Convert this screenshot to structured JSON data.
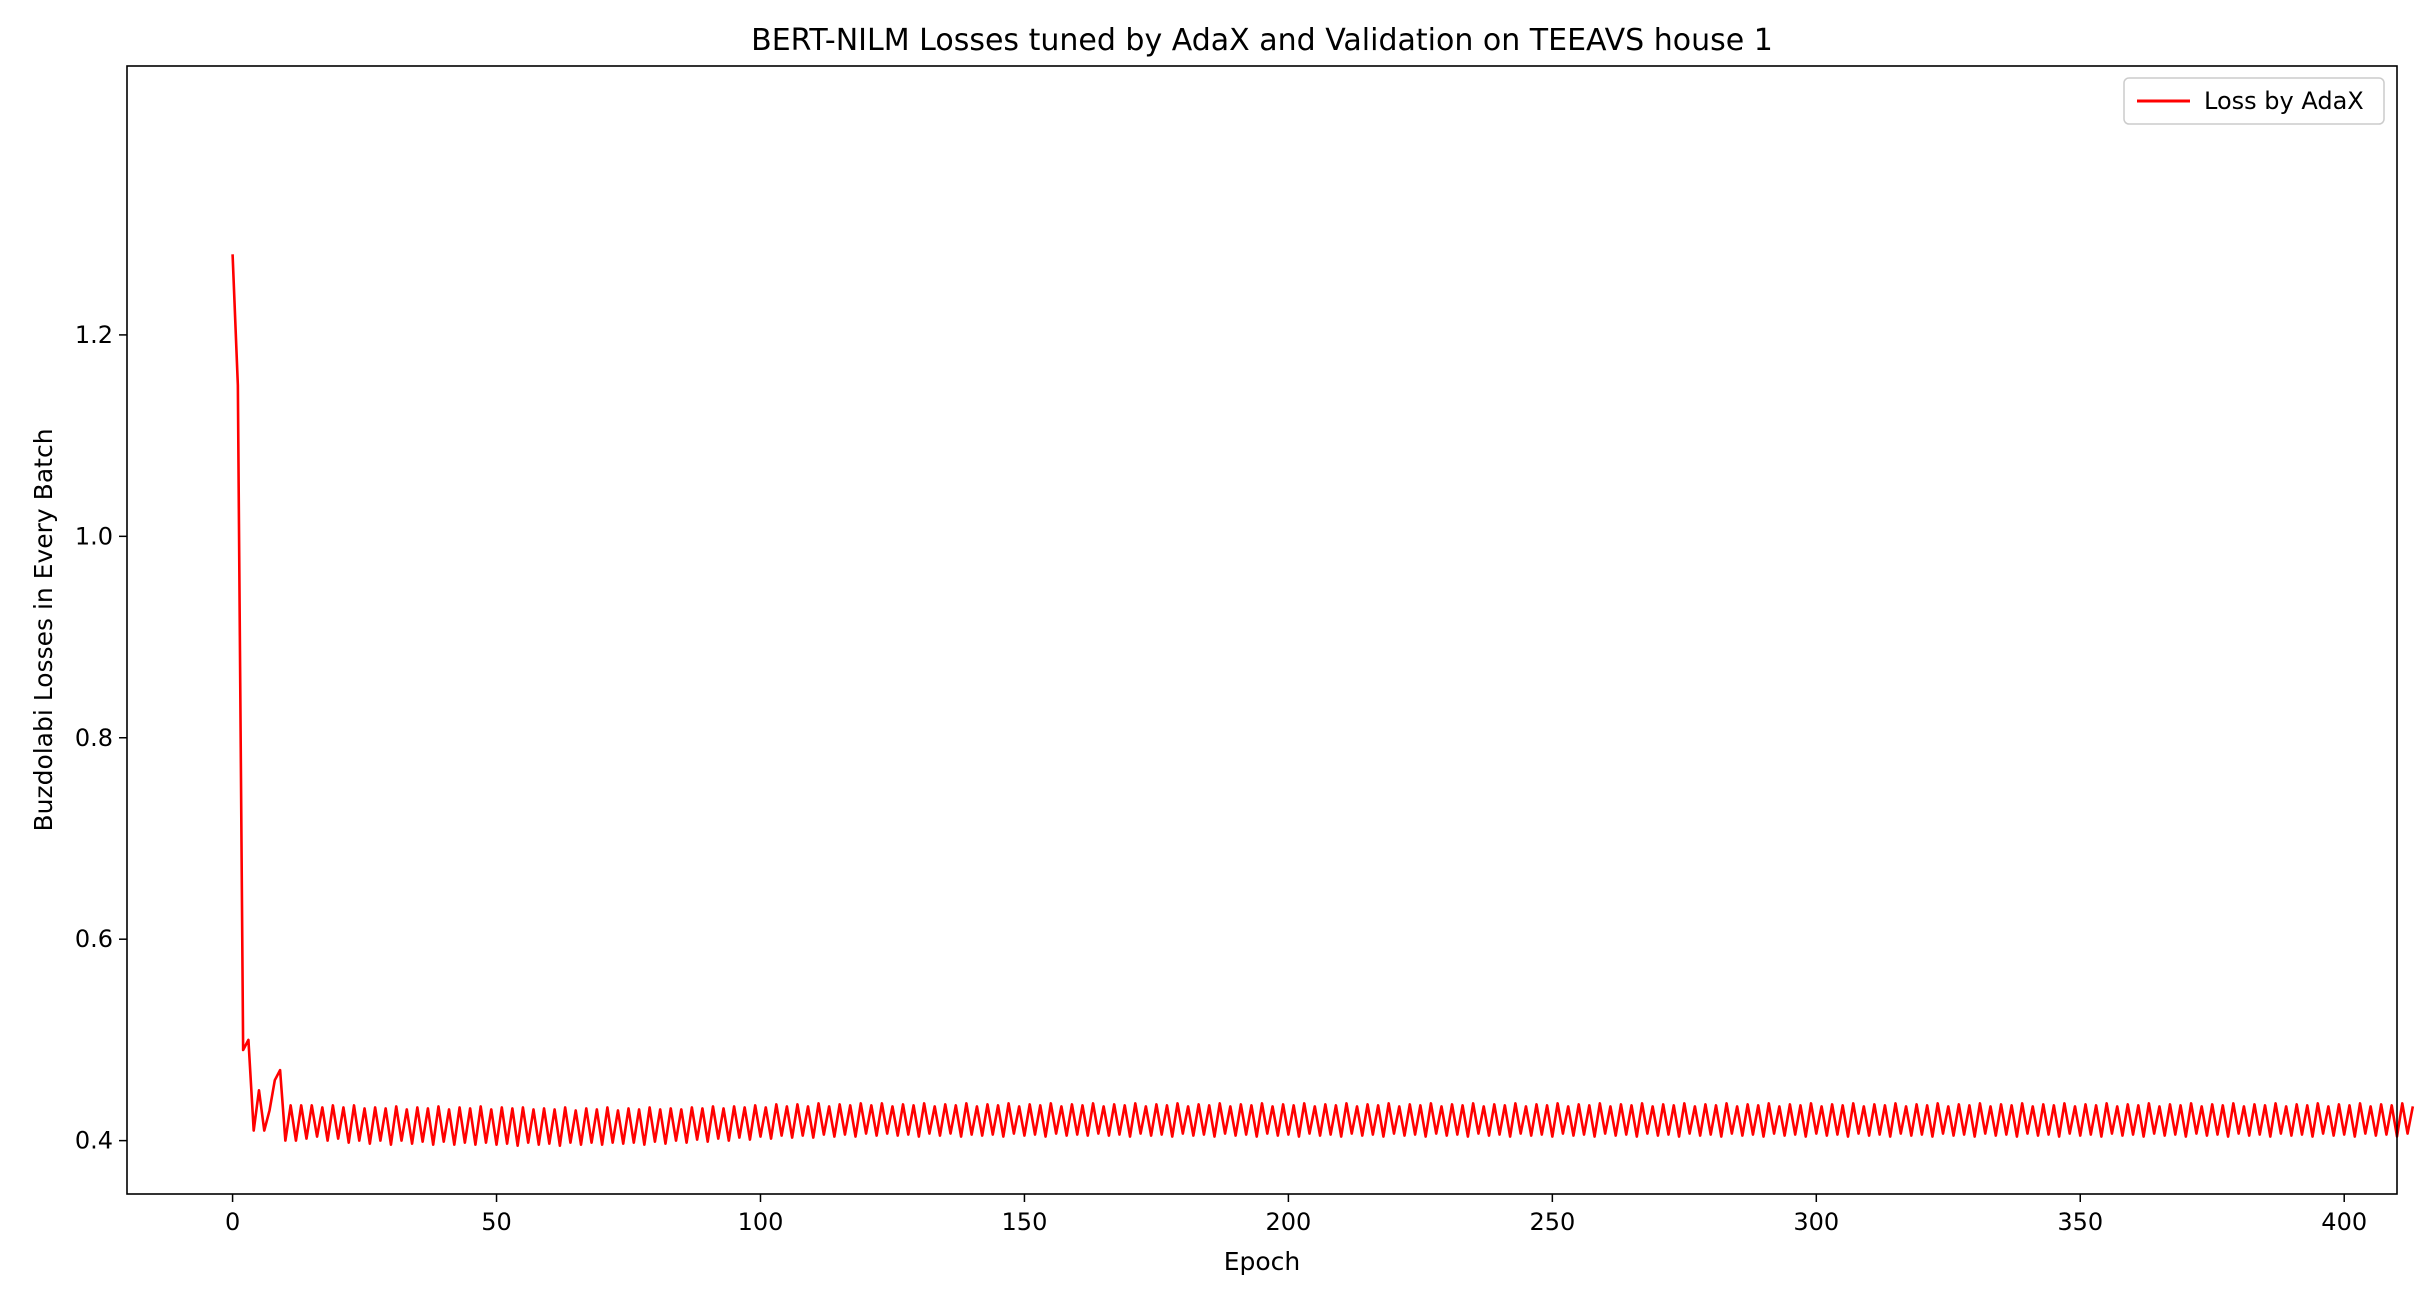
{
  "chart_data": {
    "type": "line",
    "title": "BERT-NILM Losses tuned by AdaX and Validation on TEEAVS house 1",
    "xlabel": "Epoch",
    "ylabel": "Buzdolabi Losses in Every Batch",
    "xlim": [
      -20,
      410
    ],
    "ylim": [
      0.347,
      1.467
    ],
    "x_ticks": [
      0,
      50,
      100,
      150,
      200,
      250,
      300,
      350,
      400
    ],
    "x_tick_labels": [
      "0",
      "50",
      "100",
      "150",
      "200",
      "250",
      "300",
      "350",
      "400"
    ],
    "y_ticks": [
      0.4,
      0.6,
      0.8,
      1.0,
      1.2
    ],
    "y_tick_labels": [
      "0.4",
      "0.6",
      "0.8",
      "1.0",
      "1.2"
    ],
    "grid": false,
    "legend_position": "top-right",
    "series": [
      {
        "name": "Loss by AdaX",
        "color": "#ff0000",
        "x_start": 0,
        "values": [
          1.28,
          1.15,
          0.49,
          0.5,
          0.41,
          0.45,
          0.41,
          0.43,
          0.46,
          0.47,
          0.4,
          0.435,
          0.4,
          0.435,
          0.402,
          0.435,
          0.404,
          0.433,
          0.4,
          0.435,
          0.402,
          0.433,
          0.398,
          0.435,
          0.4,
          0.432,
          0.397,
          0.433,
          0.4,
          0.432,
          0.396,
          0.434,
          0.4,
          0.431,
          0.397,
          0.433,
          0.399,
          0.432,
          0.396,
          0.434,
          0.399,
          0.431,
          0.396,
          0.433,
          0.398,
          0.432,
          0.396,
          0.434,
          0.398,
          0.431,
          0.396,
          0.433,
          0.397,
          0.432,
          0.395,
          0.433,
          0.398,
          0.431,
          0.396,
          0.432,
          0.397,
          0.431,
          0.395,
          0.433,
          0.398,
          0.43,
          0.396,
          0.432,
          0.398,
          0.431,
          0.396,
          0.433,
          0.398,
          0.43,
          0.397,
          0.432,
          0.398,
          0.431,
          0.396,
          0.433,
          0.399,
          0.431,
          0.397,
          0.432,
          0.4,
          0.431,
          0.398,
          0.433,
          0.401,
          0.432,
          0.399,
          0.434,
          0.402,
          0.432,
          0.4,
          0.434,
          0.403,
          0.433,
          0.401,
          0.435,
          0.404,
          0.433,
          0.402,
          0.436,
          0.405,
          0.434,
          0.403,
          0.436,
          0.405,
          0.434,
          0.403,
          0.437,
          0.406,
          0.434,
          0.404,
          0.436,
          0.406,
          0.435,
          0.404,
          0.437,
          0.407,
          0.435,
          0.405,
          0.437,
          0.407,
          0.434,
          0.405,
          0.436,
          0.406,
          0.435,
          0.404,
          0.437,
          0.407,
          0.434,
          0.405,
          0.436,
          0.407,
          0.435,
          0.404,
          0.437,
          0.406,
          0.434,
          0.405,
          0.436,
          0.406,
          0.435,
          0.404,
          0.437,
          0.407,
          0.434,
          0.405,
          0.436,
          0.406,
          0.435,
          0.404,
          0.437,
          0.407,
          0.434,
          0.405,
          0.436,
          0.406,
          0.435,
          0.405,
          0.437,
          0.407,
          0.434,
          0.405,
          0.436,
          0.406,
          0.435,
          0.404,
          0.437,
          0.407,
          0.434,
          0.405,
          0.436,
          0.406,
          0.435,
          0.404,
          0.437,
          0.407,
          0.434,
          0.405,
          0.436,
          0.406,
          0.435,
          0.404,
          0.437,
          0.407,
          0.434,
          0.405,
          0.436,
          0.406,
          0.435,
          0.404,
          0.437,
          0.407,
          0.434,
          0.405,
          0.436,
          0.406,
          0.435,
          0.404,
          0.437,
          0.407,
          0.434,
          0.405,
          0.436,
          0.406,
          0.435,
          0.404,
          0.437,
          0.407,
          0.434,
          0.405,
          0.436,
          0.406,
          0.435,
          0.404,
          0.437,
          0.407,
          0.434,
          0.405,
          0.436,
          0.406,
          0.435,
          0.404,
          0.437,
          0.407,
          0.434,
          0.405,
          0.436,
          0.406,
          0.435,
          0.404,
          0.437,
          0.407,
          0.434,
          0.405,
          0.436,
          0.406,
          0.435,
          0.404,
          0.437,
          0.407,
          0.434,
          0.405,
          0.436,
          0.406,
          0.435,
          0.404,
          0.437,
          0.407,
          0.434,
          0.405,
          0.436,
          0.406,
          0.435,
          0.404,
          0.437,
          0.407,
          0.434,
          0.405,
          0.436,
          0.406,
          0.435,
          0.404,
          0.437,
          0.407,
          0.434,
          0.405,
          0.436,
          0.406,
          0.435,
          0.404,
          0.437,
          0.407,
          0.434,
          0.405,
          0.436,
          0.406,
          0.435,
          0.404,
          0.437,
          0.407,
          0.434,
          0.405,
          0.436,
          0.406,
          0.435,
          0.404,
          0.437,
          0.407,
          0.434,
          0.405,
          0.436,
          0.406,
          0.435,
          0.404,
          0.437,
          0.407,
          0.434,
          0.405,
          0.436,
          0.406,
          0.435,
          0.404,
          0.437,
          0.407,
          0.434,
          0.405,
          0.436,
          0.406,
          0.435,
          0.404,
          0.437,
          0.407,
          0.434,
          0.405,
          0.436,
          0.406,
          0.435,
          0.404,
          0.437,
          0.407,
          0.434,
          0.405,
          0.436,
          0.406,
          0.435,
          0.404,
          0.437,
          0.407,
          0.434,
          0.405,
          0.436,
          0.406,
          0.435,
          0.404,
          0.437,
          0.407,
          0.434,
          0.405,
          0.436,
          0.406,
          0.435,
          0.404,
          0.437,
          0.407,
          0.434,
          0.405,
          0.436,
          0.406,
          0.435,
          0.404,
          0.437,
          0.407,
          0.434,
          0.405,
          0.436,
          0.406,
          0.435,
          0.404,
          0.437,
          0.407,
          0.434,
          0.405,
          0.436,
          0.406,
          0.435,
          0.404,
          0.437,
          0.407,
          0.434,
          0.405,
          0.436,
          0.406,
          0.435,
          0.404,
          0.437,
          0.407,
          0.434,
          0.405,
          0.436,
          0.406,
          0.435,
          0.404,
          0.437,
          0.407,
          0.434,
          0.405,
          0.436,
          0.406,
          0.435,
          0.404,
          0.437,
          0.407,
          0.434,
          0.405,
          0.436,
          0.406,
          0.435,
          0.404,
          0.437,
          0.407,
          0.434,
          0.405,
          0.436,
          0.406,
          0.435,
          0.404,
          0.437,
          0.407,
          0.434
        ]
      }
    ]
  }
}
